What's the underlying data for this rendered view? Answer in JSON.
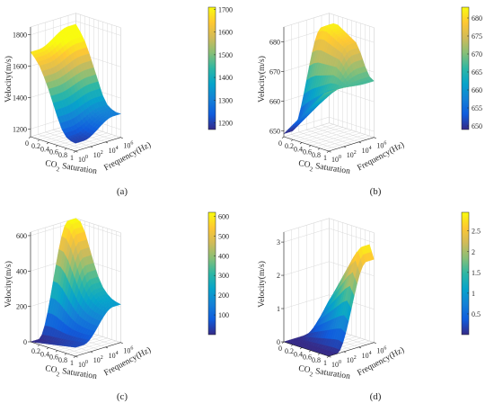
{
  "colors": {
    "parula": [
      "#352a87",
      "#0f5cdd",
      "#1481d6",
      "#06a4ca",
      "#2eb7a4",
      "#87bf77",
      "#d1bb59",
      "#fec832",
      "#f9fb0e"
    ],
    "grid": "#d9d9d9",
    "axis": "#262626"
  },
  "chart_data": [
    {
      "type": "surface",
      "panel_label": "(a)",
      "zlabel": "Velocity(m/s)",
      "xlabel_main": "CO",
      "xlabel_sub": "2",
      "xlabel_rest": " Saturation",
      "ylabel": "Frequency(Hz)",
      "x_ticks": [
        "0",
        "0.2",
        "0.4",
        "0.6",
        "0.8",
        "1"
      ],
      "y_ticks": [
        {
          "base": "10",
          "exp": "0"
        },
        {
          "base": "10",
          "exp": "2"
        },
        {
          "base": "10",
          "exp": "4"
        },
        {
          "base": "10",
          "exp": "6"
        }
      ],
      "z_ticks": [
        "1200",
        "1400",
        "1600",
        "1800"
      ],
      "zlim": [
        1150,
        1850
      ],
      "colorbar_ticks": [
        "1200",
        "1300",
        "1400",
        "1500",
        "1600",
        "1700"
      ],
      "clim": [
        1170,
        1710
      ],
      "saturation": [
        0,
        0.1,
        0.2,
        0.3,
        0.4,
        0.5,
        0.6,
        0.7,
        0.8,
        0.9,
        1.0
      ],
      "velocity_low_freq": [
        1690,
        1660,
        1620,
        1560,
        1490,
        1410,
        1330,
        1260,
        1220,
        1205,
        1200
      ],
      "velocity_high_freq": [
        1780,
        1740,
        1690,
        1620,
        1540,
        1460,
        1380,
        1330,
        1310,
        1300,
        1300
      ]
    },
    {
      "type": "surface",
      "panel_label": "(b)",
      "zlabel": "Velocity(m/s)",
      "xlabel_main": "CO",
      "xlabel_sub": "2",
      "xlabel_rest": " Saturation",
      "ylabel": "Frequency(Hz)",
      "x_ticks": [
        "0",
        "0.2",
        "0.4",
        "0.6",
        "0.8",
        "1"
      ],
      "y_ticks": [
        {
          "base": "10",
          "exp": "0"
        },
        {
          "base": "10",
          "exp": "2"
        },
        {
          "base": "10",
          "exp": "4"
        },
        {
          "base": "10",
          "exp": "6"
        }
      ],
      "z_ticks": [
        "650",
        "660",
        "670",
        "680"
      ],
      "zlim": [
        648,
        685
      ],
      "colorbar_ticks": [
        "650",
        "655",
        "660",
        "665",
        "670",
        "675",
        "680"
      ],
      "clim": [
        649,
        683
      ],
      "saturation": [
        0,
        0.1,
        0.2,
        0.3,
        0.4,
        0.5,
        0.6,
        0.7,
        0.8,
        0.9,
        1.0
      ],
      "velocity_low_freq": [
        649,
        651,
        653,
        655,
        657,
        659,
        661,
        663,
        665,
        667,
        668
      ],
      "velocity_high_freq": [
        681,
        682,
        682,
        681,
        680,
        679,
        678,
        675,
        671,
        668,
        667
      ]
    },
    {
      "type": "surface",
      "panel_label": "(c)",
      "zlabel": "Velocity(m/s)",
      "xlabel_main": "CO",
      "xlabel_sub": "2",
      "xlabel_rest": " Saturation",
      "ylabel": "Frequency(Hz)",
      "x_ticks": [
        "0.2",
        "0.4",
        "0.6",
        "0.8",
        "1"
      ],
      "y_ticks": [
        {
          "base": "10",
          "exp": "0"
        },
        {
          "base": "10",
          "exp": "2"
        },
        {
          "base": "10",
          "exp": "4"
        },
        {
          "base": "10",
          "exp": "6"
        }
      ],
      "z_ticks": [
        "0",
        "200",
        "400",
        "600"
      ],
      "zlim": [
        0,
        620
      ],
      "colorbar_ticks": [
        "100",
        "200",
        "300",
        "400",
        "500",
        "600"
      ],
      "clim": [
        0,
        620
      ],
      "saturation": [
        0,
        0.1,
        0.2,
        0.3,
        0.4,
        0.5,
        0.6,
        0.7,
        0.8,
        0.9,
        1.0
      ],
      "velocity_low_freq": [
        0,
        5,
        10,
        15,
        20,
        25,
        30,
        35,
        40,
        45,
        50
      ],
      "velocity_high_freq": [
        620,
        610,
        560,
        480,
        400,
        330,
        280,
        250,
        230,
        220,
        215
      ]
    },
    {
      "type": "surface",
      "panel_label": "(d)",
      "zlabel": "Velocity(m/s)",
      "xlabel_main": "CO",
      "xlabel_sub": "2",
      "xlabel_rest": " Saturation",
      "ylabel": "Frequency(Hz)",
      "x_ticks": [
        "0",
        "0.2",
        "0.4",
        "0.6",
        "0.8",
        "1"
      ],
      "y_ticks": [
        {
          "base": "10",
          "exp": "0"
        },
        {
          "base": "10",
          "exp": "2"
        },
        {
          "base": "10",
          "exp": "4"
        },
        {
          "base": "10",
          "exp": "6"
        }
      ],
      "z_ticks": [
        "0",
        "1",
        "2",
        "3"
      ],
      "zlim": [
        0,
        3.3
      ],
      "colorbar_ticks": [
        "0.5",
        "1",
        "1.5",
        "2",
        "2.5"
      ],
      "clim": [
        0,
        2.95
      ],
      "saturation": [
        0,
        0.1,
        0.2,
        0.3,
        0.4,
        0.5,
        0.6,
        0.7,
        0.8,
        0.9,
        1.0
      ],
      "velocity_low_freq": [
        0,
        0,
        0,
        0,
        0,
        0,
        0,
        0,
        0,
        0,
        0
      ],
      "velocity_high_freq": [
        0,
        0.3,
        0.8,
        1.2,
        1.5,
        1.8,
        2.1,
        2.4,
        2.7,
        2.9,
        2.5
      ]
    }
  ]
}
